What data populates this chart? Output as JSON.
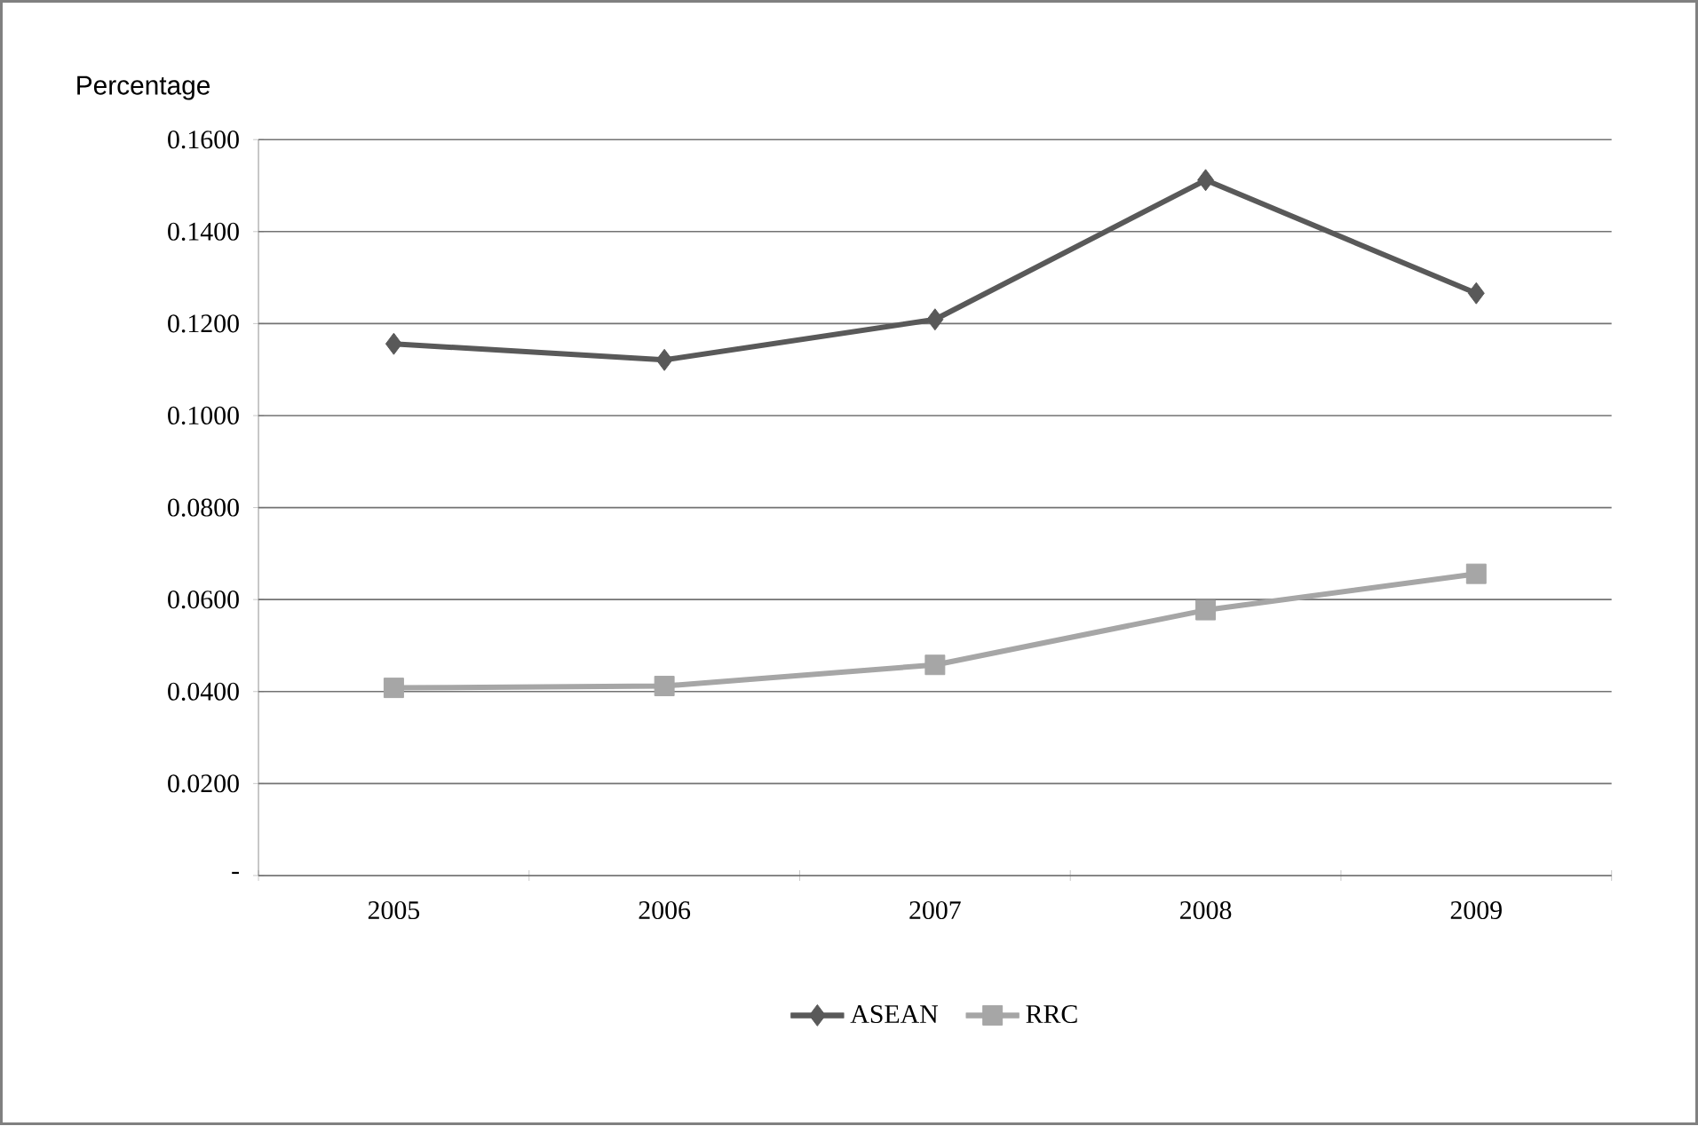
{
  "chart_data": {
    "type": "line",
    "ylabel": "Percentage",
    "categories": [
      "2005",
      "2006",
      "2007",
      "2008",
      "2009"
    ],
    "series": [
      {
        "name": "ASEAN",
        "color": "#595959",
        "marker": "diamond",
        "values": [
          0.1156,
          0.1121,
          0.1209,
          0.1512,
          0.1266
        ]
      },
      {
        "name": "RRC",
        "color": "#a6a6a6",
        "marker": "square",
        "values": [
          0.0408,
          0.0412,
          0.0458,
          0.0577,
          0.0656
        ]
      }
    ],
    "ylim": [
      0,
      0.16
    ],
    "yticks": [
      {
        "value": 0,
        "label": "-"
      },
      {
        "value": 0.02,
        "label": "0.0200"
      },
      {
        "value": 0.04,
        "label": "0.0400"
      },
      {
        "value": 0.06,
        "label": "0.0600"
      },
      {
        "value": 0.08,
        "label": "0.0800"
      },
      {
        "value": 0.1,
        "label": "0.1000"
      },
      {
        "value": 0.12,
        "label": "0.1200"
      },
      {
        "value": 0.14,
        "label": "0.1400"
      },
      {
        "value": 0.16,
        "label": "0.1600"
      }
    ],
    "grid": "y",
    "legend": "bottom",
    "line_style": "solid"
  }
}
